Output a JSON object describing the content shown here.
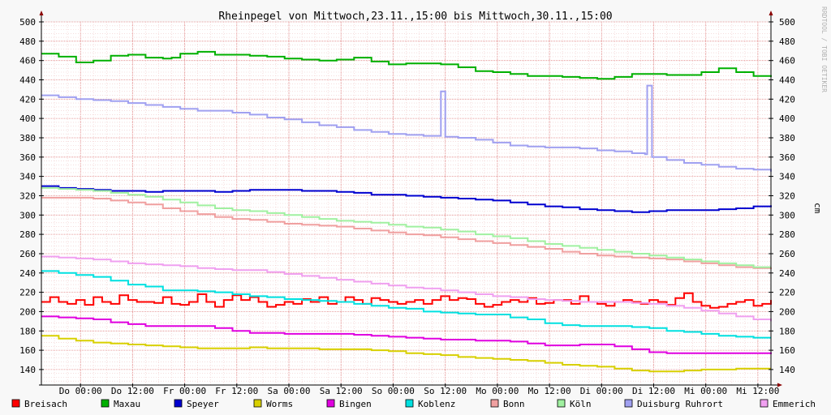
{
  "chart_data": {
    "type": "line",
    "title": "Rheinpegel von Mittwoch,23.11.,15:00 bis Mittwoch,30.11.,15:00",
    "ylabel": "cm",
    "watermark": "RRDTOOL / TOBI OETIKER",
    "ylim": [
      124,
      500
    ],
    "yticks": [
      140,
      160,
      180,
      200,
      220,
      240,
      260,
      280,
      300,
      320,
      340,
      360,
      380,
      400,
      420,
      440,
      460,
      480,
      500
    ],
    "xlim_hours": [
      0,
      168
    ],
    "xticks": [
      {
        "label": "Do 00:00",
        "hour": 9
      },
      {
        "label": "Do 12:00",
        "hour": 21
      },
      {
        "label": "Fr 00:00",
        "hour": 33
      },
      {
        "label": "Fr 12:00",
        "hour": 45
      },
      {
        "label": "Sa 00:00",
        "hour": 57
      },
      {
        "label": "Sa 12:00",
        "hour": 69
      },
      {
        "label": "So 00:00",
        "hour": 81
      },
      {
        "label": "So 12:00",
        "hour": 93
      },
      {
        "label": "Mo 00:00",
        "hour": 105
      },
      {
        "label": "Mo 12:00",
        "hour": 117
      },
      {
        "label": "Di 00:00",
        "hour": 129
      },
      {
        "label": "Di 12:00",
        "hour": 141
      },
      {
        "label": "Mi 00:00",
        "hour": 153
      },
      {
        "label": "Mi 12:00",
        "hour": 165
      }
    ],
    "grid": true,
    "legend_position": "bottom",
    "series": [
      {
        "name": "Breisach",
        "color": "#ff0000",
        "hours": [
          0,
          2,
          4,
          6,
          8,
          10,
          12,
          14,
          16,
          18,
          20,
          22,
          24,
          26,
          28,
          30,
          32,
          34,
          36,
          38,
          40,
          42,
          44,
          46,
          48,
          50,
          52,
          54,
          56,
          58,
          60,
          62,
          64,
          66,
          68,
          70,
          72,
          74,
          76,
          78,
          80,
          82,
          84,
          86,
          88,
          90,
          92,
          94,
          96,
          98,
          100,
          102,
          104,
          106,
          108,
          110,
          112,
          114,
          116,
          118,
          120,
          122,
          124,
          126,
          128,
          130,
          132,
          134,
          136,
          138,
          140,
          142,
          144,
          146,
          148,
          150,
          152,
          154,
          156,
          158,
          160,
          162,
          164,
          166,
          168
        ],
        "values": [
          210,
          215,
          210,
          208,
          212,
          207,
          215,
          210,
          208,
          217,
          212,
          210,
          210,
          209,
          215,
          208,
          207,
          210,
          218,
          210,
          205,
          212,
          217,
          212,
          215,
          210,
          205,
          207,
          210,
          208,
          213,
          210,
          215,
          208,
          210,
          215,
          212,
          208,
          214,
          212,
          210,
          208,
          210,
          212,
          208,
          212,
          216,
          212,
          214,
          213,
          208,
          205,
          207,
          210,
          212,
          210,
          214,
          208,
          209,
          212,
          212,
          208,
          216,
          210,
          208,
          206,
          210,
          212,
          210,
          208,
          212,
          210,
          207,
          214,
          219,
          210,
          206,
          204,
          205,
          208,
          210,
          212,
          206,
          208,
          212
        ]
      },
      {
        "name": "Maxau",
        "color": "#00b000",
        "hours": [
          0,
          4,
          8,
          12,
          16,
          20,
          24,
          28,
          30,
          32,
          36,
          40,
          44,
          48,
          52,
          56,
          60,
          64,
          68,
          72,
          76,
          80,
          84,
          88,
          92,
          96,
          100,
          104,
          108,
          112,
          116,
          120,
          124,
          128,
          132,
          136,
          140,
          144,
          148,
          152,
          156,
          160,
          164,
          168
        ],
        "values": [
          467,
          464,
          458,
          460,
          465,
          466,
          463,
          462,
          463,
          467,
          469,
          466,
          466,
          465,
          464,
          462,
          461,
          460,
          461,
          463,
          459,
          456,
          457,
          457,
          456,
          453,
          449,
          448,
          446,
          444,
          444,
          443,
          442,
          441,
          443,
          446,
          446,
          445,
          445,
          448,
          452,
          448,
          444,
          443
        ]
      },
      {
        "name": "Speyer",
        "color": "#0000d0",
        "hours": [
          0,
          4,
          8,
          12,
          16,
          20,
          24,
          28,
          32,
          36,
          40,
          44,
          48,
          52,
          56,
          60,
          64,
          68,
          72,
          76,
          80,
          84,
          88,
          92,
          96,
          100,
          104,
          108,
          112,
          116,
          120,
          124,
          128,
          132,
          136,
          140,
          144,
          148,
          152,
          156,
          160,
          164,
          168
        ],
        "values": [
          330,
          328,
          327,
          326,
          325,
          325,
          324,
          325,
          325,
          325,
          324,
          325,
          326,
          326,
          326,
          325,
          325,
          324,
          323,
          321,
          321,
          320,
          319,
          318,
          317,
          316,
          315,
          313,
          311,
          309,
          308,
          306,
          305,
          304,
          303,
          304,
          305,
          305,
          305,
          306,
          307,
          309,
          310
        ]
      },
      {
        "name": "Worms",
        "color": "#d8d000",
        "hours": [
          0,
          4,
          8,
          12,
          16,
          20,
          24,
          28,
          32,
          36,
          40,
          44,
          48,
          52,
          56,
          60,
          64,
          68,
          72,
          76,
          80,
          84,
          88,
          92,
          96,
          100,
          104,
          108,
          112,
          116,
          120,
          124,
          128,
          132,
          136,
          140,
          144,
          148,
          152,
          156,
          160,
          164,
          168
        ],
        "values": [
          175,
          172,
          170,
          168,
          167,
          166,
          165,
          164,
          163,
          162,
          162,
          162,
          163,
          162,
          162,
          162,
          161,
          161,
          161,
          160,
          159,
          157,
          156,
          155,
          153,
          152,
          151,
          150,
          149,
          147,
          145,
          144,
          143,
          141,
          139,
          138,
          138,
          139,
          140,
          140,
          141,
          141,
          141
        ]
      },
      {
        "name": "Bingen",
        "color": "#e000e0",
        "hours": [
          0,
          4,
          8,
          12,
          16,
          20,
          24,
          28,
          32,
          36,
          40,
          44,
          48,
          52,
          56,
          60,
          64,
          68,
          72,
          76,
          80,
          84,
          88,
          92,
          96,
          100,
          104,
          108,
          112,
          116,
          120,
          124,
          128,
          132,
          136,
          140,
          144,
          148,
          152,
          156,
          160,
          164,
          168
        ],
        "values": [
          195,
          194,
          193,
          192,
          189,
          187,
          185,
          185,
          185,
          185,
          183,
          180,
          178,
          178,
          177,
          177,
          177,
          177,
          176,
          175,
          174,
          173,
          172,
          171,
          171,
          170,
          170,
          169,
          167,
          165,
          165,
          166,
          166,
          164,
          161,
          158,
          157,
          157,
          157,
          157,
          157,
          157,
          156
        ]
      },
      {
        "name": "Koblenz",
        "color": "#00e0e0",
        "hours": [
          0,
          4,
          8,
          12,
          16,
          20,
          24,
          28,
          32,
          36,
          40,
          44,
          48,
          52,
          56,
          60,
          64,
          68,
          72,
          76,
          80,
          84,
          88,
          92,
          96,
          100,
          104,
          108,
          112,
          116,
          120,
          124,
          128,
          132,
          136,
          140,
          144,
          148,
          152,
          156,
          160,
          164,
          168
        ],
        "values": [
          242,
          240,
          238,
          236,
          232,
          228,
          226,
          222,
          222,
          221,
          220,
          218,
          216,
          215,
          213,
          212,
          211,
          210,
          208,
          206,
          204,
          203,
          200,
          199,
          198,
          197,
          197,
          194,
          192,
          188,
          186,
          185,
          185,
          185,
          184,
          183,
          180,
          179,
          177,
          175,
          174,
          173,
          173
        ]
      },
      {
        "name": "Bonn",
        "color": "#f0a0a0",
        "hours": [
          0,
          4,
          8,
          12,
          16,
          20,
          24,
          28,
          32,
          36,
          40,
          44,
          48,
          52,
          56,
          60,
          64,
          68,
          72,
          76,
          80,
          84,
          88,
          92,
          96,
          100,
          104,
          108,
          112,
          116,
          120,
          124,
          128,
          132,
          136,
          140,
          144,
          148,
          152,
          156,
          160,
          164,
          168
        ],
        "values": [
          318,
          318,
          318,
          317,
          315,
          313,
          311,
          307,
          304,
          301,
          298,
          296,
          295,
          293,
          291,
          290,
          289,
          288,
          286,
          284,
          282,
          280,
          279,
          277,
          275,
          273,
          271,
          269,
          267,
          265,
          262,
          260,
          258,
          257,
          256,
          255,
          254,
          252,
          250,
          248,
          246,
          245,
          244
        ]
      },
      {
        "name": "Köln",
        "color": "#a0f0a0",
        "hours": [
          0,
          4,
          8,
          12,
          16,
          20,
          24,
          28,
          32,
          36,
          40,
          44,
          48,
          52,
          56,
          60,
          64,
          68,
          72,
          76,
          80,
          84,
          88,
          92,
          96,
          100,
          104,
          108,
          112,
          116,
          120,
          124,
          128,
          132,
          136,
          140,
          144,
          148,
          152,
          156,
          160,
          164,
          168
        ],
        "values": [
          328,
          327,
          326,
          325,
          323,
          321,
          319,
          316,
          313,
          310,
          307,
          305,
          304,
          302,
          300,
          298,
          296,
          294,
          293,
          292,
          290,
          288,
          287,
          285,
          283,
          280,
          278,
          276,
          273,
          270,
          268,
          266,
          264,
          262,
          260,
          258,
          256,
          254,
          252,
          250,
          248,
          246,
          246
        ]
      },
      {
        "name": "Duisburg Ruhrort",
        "color": "#a0a0f0",
        "hours": [
          0,
          4,
          8,
          12,
          16,
          20,
          24,
          28,
          32,
          36,
          40,
          44,
          48,
          52,
          56,
          60,
          64,
          68,
          72,
          76,
          80,
          84,
          88,
          91.5,
          92,
          92.9,
          93,
          96,
          100,
          104,
          108,
          112,
          116,
          120,
          124,
          128,
          132,
          136,
          139,
          139.5,
          140.4,
          140.6,
          144,
          148,
          152,
          156,
          160,
          164,
          168
        ],
        "values": [
          424,
          422,
          420,
          419,
          418,
          416,
          414,
          412,
          410,
          408,
          408,
          406,
          404,
          401,
          399,
          396,
          393,
          391,
          388,
          386,
          384,
          383,
          382,
          382,
          428,
          428,
          381,
          380,
          378,
          375,
          372,
          371,
          370,
          370,
          369,
          367,
          366,
          364,
          363,
          434,
          434,
          360,
          357,
          354,
          352,
          350,
          348,
          347,
          345
        ]
      },
      {
        "name": "Emmerich",
        "color": "#f0a0f0",
        "hours": [
          0,
          4,
          8,
          12,
          16,
          20,
          24,
          28,
          32,
          36,
          40,
          44,
          48,
          52,
          56,
          60,
          64,
          68,
          72,
          76,
          80,
          84,
          88,
          92,
          96,
          100,
          104,
          108,
          112,
          116,
          120,
          124,
          128,
          132,
          136,
          140,
          144,
          148,
          152,
          156,
          160,
          164,
          168
        ],
        "values": [
          257,
          256,
          255,
          254,
          252,
          250,
          249,
          248,
          247,
          245,
          244,
          243,
          243,
          241,
          239,
          237,
          235,
          233,
          231,
          229,
          227,
          225,
          224,
          222,
          220,
          218,
          216,
          215,
          213,
          212,
          211,
          210,
          210,
          210,
          209,
          208,
          206,
          204,
          201,
          198,
          195,
          192,
          190
        ]
      }
    ]
  }
}
